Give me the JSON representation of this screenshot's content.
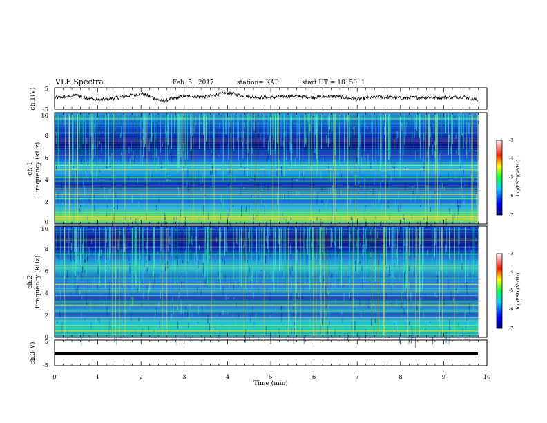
{
  "header": {
    "title": "VLF Spectra",
    "date": "Feb. 5 , 2017",
    "station": "station= KAP",
    "start_ut": "start UT = 18: 50: 1"
  },
  "chart_data": [
    {
      "type": "line",
      "panel": "ch1-waveform",
      "ylabel": "ch.1(V)",
      "ylim": [
        -5,
        5
      ],
      "y_ticks": [
        "5",
        "-5"
      ],
      "xlim": [
        0,
        10
      ],
      "series": [
        {
          "color": "#000000",
          "x": [
            0,
            0.5,
            1,
            1.5,
            2,
            2.5,
            3,
            3.5,
            4,
            4.5,
            5,
            5.5,
            6,
            6.5,
            7,
            7.5,
            8,
            8.5,
            9,
            9.5,
            9.8
          ],
          "values": [
            0.2,
            1.5,
            -0.8,
            0.5,
            2.3,
            -1.2,
            1.2,
            0.8,
            2.6,
            0.8,
            0.4,
            1.2,
            0.6,
            1.0,
            -0.3,
            0.8,
            0.2,
            0.5,
            0.5,
            0.7,
            -0.8
          ]
        }
      ]
    },
    {
      "type": "heatmap",
      "panel": "ch1-spectrogram",
      "ylabel": "ch.1",
      "ylabel2": "Frequency (kHz)",
      "ylim": [
        0,
        10
      ],
      "y_ticks": [
        "0",
        "2",
        "4",
        "6",
        "8",
        "10"
      ],
      "xlim": [
        0,
        10
      ],
      "bands_khz": [
        0.3,
        0.7,
        1.1,
        1.8,
        2.3,
        2.7,
        3.0,
        3.8,
        4.2,
        4.9,
        5.3,
        6.6,
        9.5
      ],
      "colorbar": {
        "label": "log(PSD)(V²/Hz)",
        "range": [
          -7,
          -3
        ],
        "ticks": [
          "-3",
          "-4",
          "-5",
          "-6",
          "-7"
        ]
      }
    },
    {
      "type": "heatmap",
      "panel": "ch2-spectrogram",
      "ylabel": "ch.2",
      "ylabel2": "Frequency (kHz)",
      "ylim": [
        0,
        10
      ],
      "y_ticks": [
        "0",
        "2",
        "4",
        "6",
        "8",
        "10"
      ],
      "xlim": [
        0,
        10
      ],
      "bands_khz": [
        0.3,
        0.6,
        1.1,
        1.8,
        2.4,
        2.9,
        3.3,
        3.8,
        4.2,
        4.8,
        5.3,
        6.5,
        7.5
      ],
      "colorbar": {
        "label": "log(PSD)(V²/Hz)",
        "range": [
          -7,
          -3
        ],
        "ticks": [
          "-3",
          "-4",
          "-5",
          "-6",
          "-7"
        ]
      }
    },
    {
      "type": "line",
      "panel": "ch3-waveform",
      "ylabel": "ch.3(V)",
      "ylim": [
        -5,
        5
      ],
      "y_ticks": [
        "5",
        "-5"
      ],
      "xlim": [
        0,
        10
      ],
      "series": [
        {
          "color": "#000000",
          "x": [
            0,
            9.8
          ],
          "values": [
            0,
            0
          ]
        }
      ]
    }
  ],
  "x_axis": {
    "label": "Time (min)",
    "ticks": [
      "0",
      "1",
      "2",
      "3",
      "4",
      "5",
      "6",
      "7",
      "8",
      "9",
      "10"
    ]
  }
}
